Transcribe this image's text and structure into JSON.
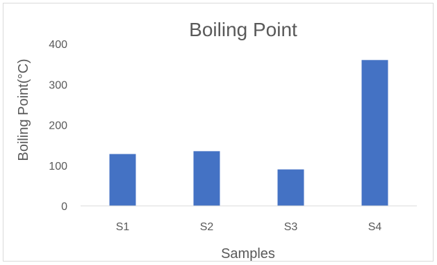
{
  "chart_data": {
    "type": "bar",
    "title": "Boiling Point",
    "xlabel": "Samples",
    "ylabel": "Boiling Point(°C)",
    "categories": [
      "S1",
      "S2",
      "S3",
      "S4"
    ],
    "values": [
      128,
      135,
      90,
      360
    ],
    "ylim": [
      0,
      400
    ],
    "yticks": [
      0,
      100,
      200,
      300,
      400
    ],
    "grid": false,
    "legend": "none",
    "bar_color": "#4472c4",
    "axis_color": "#d9d9d9"
  }
}
